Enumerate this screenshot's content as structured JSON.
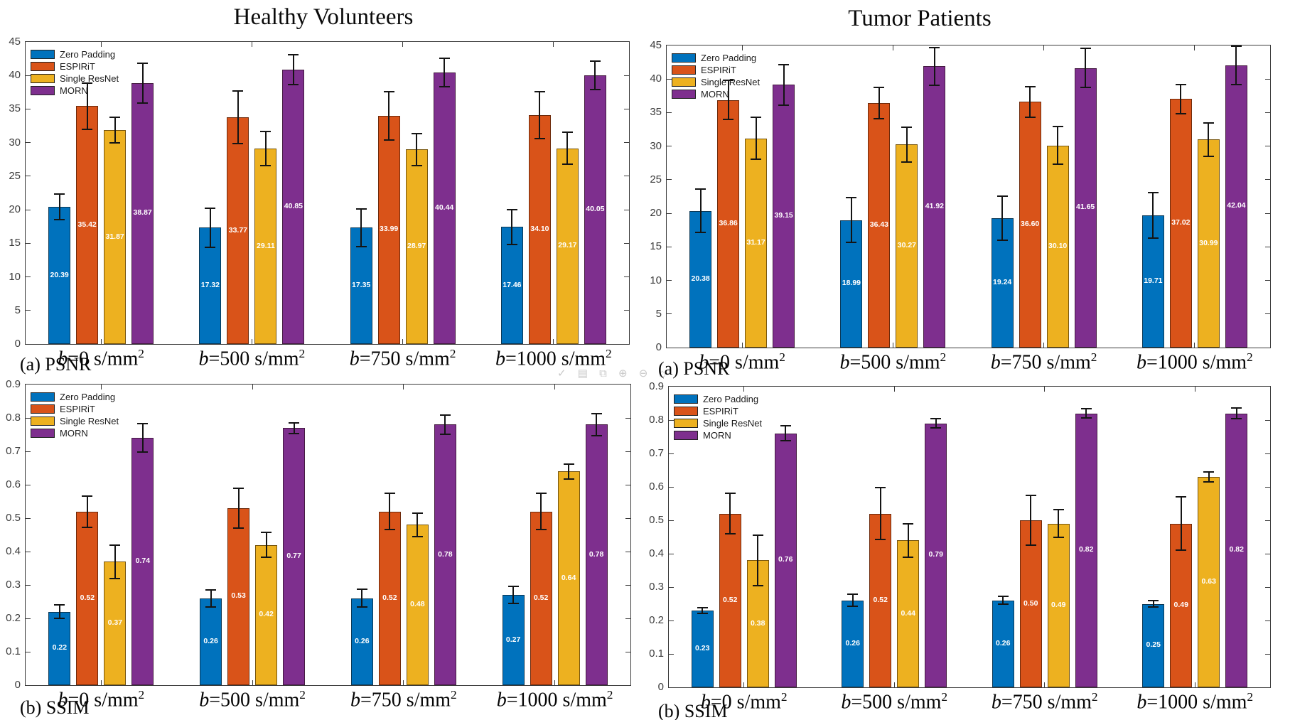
{
  "titles": {
    "left": "Healthy Volunteers",
    "right": "Tumor Patients"
  },
  "legend": {
    "items": [
      "Zero Padding",
      "ESPIRiT",
      "Single ResNet",
      "MORN"
    ]
  },
  "colors": {
    "zero_padding": "#0072BD",
    "espirit": "#D95319",
    "single_resnet": "#EDB120",
    "morn": "#7E2F8E",
    "error_bar": "#141414",
    "axis": "#3a3a3a",
    "tick_label": "#3c3c3c",
    "value_label": "#ffffff",
    "background": "#ffffff"
  },
  "watermark": {
    "glyphs": "✓ ▤ ⧉ ⊕ ⊖ ⌂"
  },
  "chart_data": [
    {
      "type": "bar",
      "panel": "psnr-healthy",
      "column_title": "Healthy Volunteers",
      "caption": "(a) PSNR",
      "categories": [
        "b=0 s/mm^2",
        "b=500 s/mm^2",
        "b=750 s/mm^2",
        "b=1000 s/mm^2"
      ],
      "ylim": [
        0,
        45
      ],
      "yticks": [
        "0",
        "5",
        "10",
        "15",
        "20",
        "25",
        "30",
        "35",
        "40",
        "45"
      ],
      "grid": false,
      "legend_position": "top-left-inside",
      "value_decimals": 2,
      "series": [
        {
          "name": "Zero Padding",
          "color": "#0072BD",
          "values": [
            20.39,
            17.32,
            17.35,
            17.46
          ],
          "errors": [
            1.9,
            2.9,
            2.8,
            2.6
          ]
        },
        {
          "name": "ESPIRiT",
          "color": "#D95319",
          "values": [
            35.42,
            33.77,
            33.99,
            34.1
          ],
          "errors": [
            3.4,
            3.9,
            3.6,
            3.5
          ]
        },
        {
          "name": "Single ResNet",
          "color": "#EDB120",
          "values": [
            31.87,
            29.11,
            28.97,
            29.17
          ],
          "errors": [
            1.9,
            2.5,
            2.4,
            2.4
          ]
        },
        {
          "name": "MORN",
          "color": "#7E2F8E",
          "values": [
            38.87,
            40.85,
            40.44,
            40.05
          ],
          "errors": [
            3.0,
            2.2,
            2.1,
            2.1
          ]
        }
      ]
    },
    {
      "type": "bar",
      "panel": "psnr-tumor",
      "column_title": "Tumor Patients",
      "caption": "(a) PSNR",
      "categories": [
        "b=0 s/mm^2",
        "b=500 s/mm^2",
        "b=750 s/mm^2",
        "b=1000 s/mm^2"
      ],
      "ylim": [
        0,
        45
      ],
      "yticks": [
        "0",
        "5",
        "10",
        "15",
        "20",
        "25",
        "30",
        "35",
        "40",
        "45"
      ],
      "grid": false,
      "legend_position": "top-left-inside",
      "value_decimals": 2,
      "series": [
        {
          "name": "Zero Padding",
          "color": "#0072BD",
          "values": [
            20.38,
            18.99,
            19.24,
            19.71
          ],
          "errors": [
            3.2,
            3.3,
            3.3,
            3.4
          ]
        },
        {
          "name": "ESPIRiT",
          "color": "#D95319",
          "values": [
            36.86,
            36.43,
            36.6,
            37.02
          ],
          "errors": [
            2.9,
            2.3,
            2.3,
            2.2
          ]
        },
        {
          "name": "Single ResNet",
          "color": "#EDB120",
          "values": [
            31.17,
            30.27,
            30.1,
            30.99
          ],
          "errors": [
            3.1,
            2.6,
            2.8,
            2.5
          ]
        },
        {
          "name": "MORN",
          "color": "#7E2F8E",
          "values": [
            39.15,
            41.92,
            41.65,
            42.04
          ],
          "errors": [
            3.0,
            2.8,
            2.9,
            2.9
          ]
        }
      ]
    },
    {
      "type": "bar",
      "panel": "ssim-healthy",
      "column_title": "Healthy Volunteers",
      "caption": "(b) SSIM",
      "categories": [
        "b=0 s/mm^2",
        "b=500 s/mm^2",
        "b=750 s/mm^2",
        "b=1000 s/mm^2"
      ],
      "ylim": [
        0,
        0.9
      ],
      "yticks": [
        "0",
        "0.1",
        "0.2",
        "0.3",
        "0.4",
        "0.5",
        "0.6",
        "0.7",
        "0.8",
        "0.9"
      ],
      "grid": false,
      "legend_position": "top-left-inside",
      "value_decimals": 2,
      "series": [
        {
          "name": "Zero Padding",
          "color": "#0072BD",
          "values": [
            0.22,
            0.26,
            0.26,
            0.27
          ],
          "errors": [
            0.02,
            0.026,
            0.027,
            0.025
          ]
        },
        {
          "name": "ESPIRiT",
          "color": "#D95319",
          "values": [
            0.52,
            0.53,
            0.52,
            0.52
          ],
          "errors": [
            0.047,
            0.06,
            0.055,
            0.055
          ]
        },
        {
          "name": "Single ResNet",
          "color": "#EDB120",
          "values": [
            0.37,
            0.42,
            0.48,
            0.64
          ],
          "errors": [
            0.05,
            0.038,
            0.035,
            0.022
          ]
        },
        {
          "name": "MORN",
          "color": "#7E2F8E",
          "values": [
            0.74,
            0.77,
            0.78,
            0.78
          ],
          "errors": [
            0.042,
            0.016,
            0.028,
            0.033
          ]
        }
      ]
    },
    {
      "type": "bar",
      "panel": "ssim-tumor",
      "column_title": "Tumor Patients",
      "caption": "(b) SSIM",
      "categories": [
        "b=0 s/mm^2",
        "b=500 s/mm^2",
        "b=750 s/mm^2",
        "b=1000 s/mm^2"
      ],
      "ylim": [
        0,
        0.9
      ],
      "yticks": [
        "0",
        "0.1",
        "0.2",
        "0.3",
        "0.4",
        "0.5",
        "0.6",
        "0.7",
        "0.8",
        "0.9"
      ],
      "grid": false,
      "legend_position": "top-left-inside",
      "value_decimals": 2,
      "series": [
        {
          "name": "Zero Padding",
          "color": "#0072BD",
          "values": [
            0.23,
            0.26,
            0.26,
            0.25
          ],
          "errors": [
            0.008,
            0.018,
            0.012,
            0.01
          ]
        },
        {
          "name": "ESPIRiT",
          "color": "#D95319",
          "values": [
            0.52,
            0.52,
            0.5,
            0.49
          ],
          "errors": [
            0.06,
            0.078,
            0.075,
            0.08
          ]
        },
        {
          "name": "Single ResNet",
          "color": "#EDB120",
          "values": [
            0.38,
            0.44,
            0.49,
            0.63
          ],
          "errors": [
            0.075,
            0.05,
            0.042,
            0.015
          ]
        },
        {
          "name": "MORN",
          "color": "#7E2F8E",
          "values": [
            0.76,
            0.79,
            0.82,
            0.82
          ],
          "errors": [
            0.022,
            0.014,
            0.014,
            0.016
          ]
        }
      ]
    }
  ]
}
